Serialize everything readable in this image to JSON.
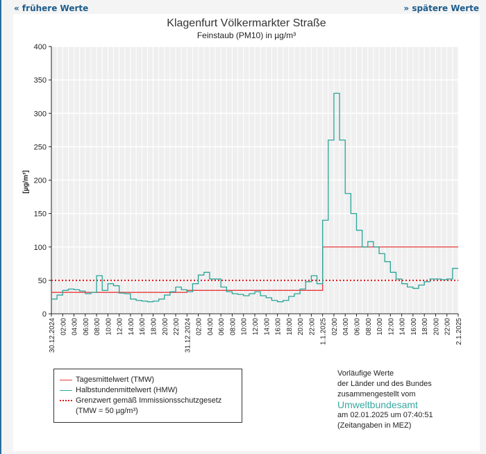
{
  "nav": {
    "prev": "« frühere Werte",
    "next": "» spätere Werte"
  },
  "chart_data": {
    "type": "line",
    "title": "Klagenfurt Völkermarkter Straße",
    "subtitle": "Feinstaub (PM10) in µg/m³",
    "ylabel": "[µg/m³]",
    "ylim": [
      0,
      400
    ],
    "yticks": [
      0,
      50,
      100,
      150,
      200,
      250,
      300,
      350,
      400
    ],
    "xlim": [
      "30.12.2024 00:00",
      "2.1.2025 00:00"
    ],
    "xtick_labels": [
      "30.12.2024",
      "02:00",
      "04:00",
      "06:00",
      "08:00",
      "10:00",
      "12:00",
      "14:00",
      "16:00",
      "18:00",
      "20:00",
      "22:00",
      "31.12.2024",
      "02:00",
      "04:00",
      "06:00",
      "08:00",
      "10:00",
      "12:00",
      "14:00",
      "16:00",
      "18:00",
      "20:00",
      "22:00",
      "1.1.2025",
      "02:00",
      "04:00",
      "06:00",
      "08:00",
      "10:00",
      "12:00",
      "14:00",
      "16:00",
      "18:00",
      "20:00",
      "22:00",
      "2.1.2025"
    ],
    "grid": true,
    "series": [
      {
        "name": "Tagesmittelwert (TMW)",
        "color": "#e8393a",
        "step": "day",
        "values": [
          32,
          35,
          100
        ]
      },
      {
        "name": "Halbstundenmittelwert (HMW)",
        "color": "#2aa59a",
        "step": "hour",
        "values": [
          22,
          28,
          35,
          37,
          36,
          34,
          30,
          32,
          57,
          35,
          45,
          42,
          31,
          30,
          22,
          20,
          19,
          18,
          19,
          22,
          28,
          33,
          40,
          36,
          33,
          45,
          58,
          62,
          52,
          52,
          40,
          33,
          30,
          29,
          27,
          30,
          33,
          27,
          24,
          20,
          18,
          20,
          26,
          30,
          37,
          48,
          57,
          45,
          140,
          260,
          330,
          260,
          180,
          150,
          125,
          100,
          108,
          100,
          90,
          78,
          62,
          52,
          45,
          40,
          38,
          43,
          48,
          52,
          52,
          51,
          52,
          68
        ]
      },
      {
        "name": "Grenzwert gemäß Immissionsschutzgesetz",
        "color": "#e01010",
        "style": "dotted",
        "value": 50
      }
    ],
    "legend": {
      "items": [
        "Tagesmittelwert (TMW)",
        "Halbstundenmittelwert (HMW)",
        "Grenzwert gemäß Immissionsschutzgesetz"
      ],
      "limit_note": "(TMW = 50 µg/m³)",
      "placement": "bottom-left"
    }
  },
  "info": {
    "line1": "Vorläufige Werte",
    "line2": "der Länder und des Bundes",
    "line3": "zusammengestellt vom",
    "agency": "Umweltbundesamt",
    "timestamp": "am 02.01.2025 um 07:40:51",
    "timezone_note": "(Zeitangaben in MEZ)"
  }
}
